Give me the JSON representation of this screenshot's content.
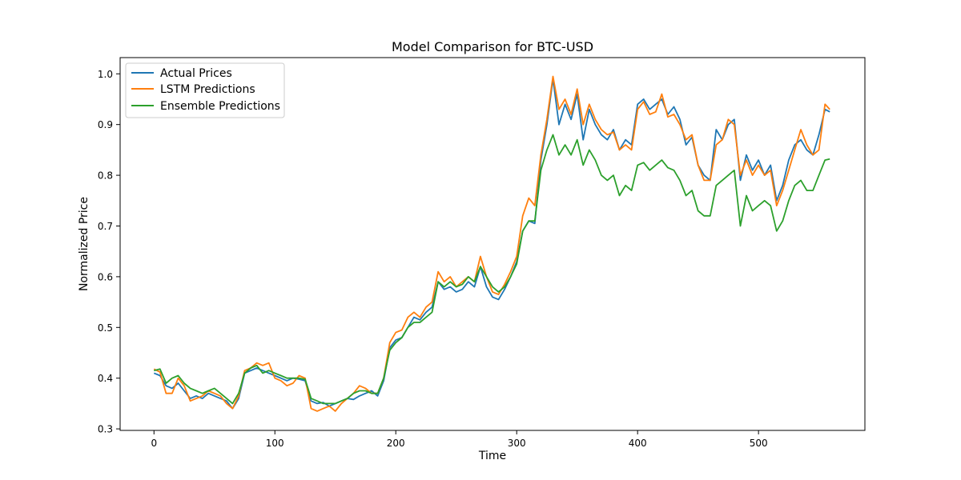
{
  "chart_data": {
    "type": "line",
    "title": "Model Comparison for BTC-USD",
    "xlabel": "Time",
    "ylabel": "Normalized Price",
    "xlim": [
      -28,
      588
    ],
    "ylim": [
      0.297,
      1.032
    ],
    "xticks": [
      0,
      100,
      200,
      300,
      400,
      500
    ],
    "yticks": [
      0.3,
      0.4,
      0.5,
      0.6,
      0.7,
      0.8,
      0.9,
      1.0
    ],
    "ytick_labels": [
      "0.3",
      "0.4",
      "0.5",
      "0.6",
      "0.7",
      "0.8",
      "0.9",
      "1.0"
    ],
    "grid": false,
    "legend_position": "top-left",
    "series": [
      {
        "name": "Actual Prices",
        "color": "#1f77b4",
        "x": [
          0,
          5,
          10,
          15,
          20,
          25,
          30,
          35,
          40,
          45,
          50,
          55,
          60,
          65,
          70,
          75,
          80,
          85,
          90,
          95,
          100,
          105,
          110,
          115,
          120,
          125,
          130,
          135,
          140,
          145,
          150,
          155,
          160,
          165,
          170,
          175,
          180,
          185,
          190,
          195,
          200,
          205,
          210,
          215,
          220,
          225,
          230,
          235,
          240,
          245,
          250,
          255,
          260,
          265,
          270,
          275,
          280,
          285,
          290,
          295,
          300,
          305,
          310,
          315,
          320,
          325,
          330,
          335,
          340,
          345,
          350,
          355,
          360,
          365,
          370,
          375,
          380,
          385,
          390,
          395,
          400,
          405,
          410,
          415,
          420,
          425,
          430,
          435,
          440,
          445,
          450,
          455,
          460,
          465,
          470,
          475,
          480,
          485,
          490,
          495,
          500,
          505,
          510,
          515,
          520,
          525,
          530,
          535,
          540,
          545,
          550,
          555,
          559
        ],
        "values": [
          0.41,
          0.405,
          0.385,
          0.38,
          0.39,
          0.375,
          0.36,
          0.365,
          0.36,
          0.37,
          0.365,
          0.36,
          0.355,
          0.34,
          0.36,
          0.41,
          0.415,
          0.42,
          0.415,
          0.41,
          0.405,
          0.4,
          0.395,
          0.4,
          0.398,
          0.395,
          0.355,
          0.35,
          0.352,
          0.345,
          0.35,
          0.355,
          0.36,
          0.358,
          0.365,
          0.37,
          0.375,
          0.365,
          0.395,
          0.46,
          0.475,
          0.48,
          0.5,
          0.52,
          0.515,
          0.53,
          0.54,
          0.59,
          0.575,
          0.58,
          0.57,
          0.575,
          0.59,
          0.58,
          0.62,
          0.58,
          0.56,
          0.555,
          0.575,
          0.6,
          0.63,
          0.69,
          0.71,
          0.705,
          0.83,
          0.9,
          0.99,
          0.9,
          0.94,
          0.91,
          0.96,
          0.87,
          0.93,
          0.9,
          0.88,
          0.87,
          0.89,
          0.85,
          0.87,
          0.86,
          0.94,
          0.95,
          0.93,
          0.94,
          0.95,
          0.92,
          0.935,
          0.91,
          0.86,
          0.875,
          0.82,
          0.8,
          0.79,
          0.89,
          0.87,
          0.9,
          0.91,
          0.79,
          0.84,
          0.81,
          0.83,
          0.8,
          0.82,
          0.75,
          0.78,
          0.83,
          0.86,
          0.87,
          0.85,
          0.84,
          0.88,
          0.93,
          0.925
        ]
      },
      {
        "name": "LSTM Predictions",
        "color": "#ff7f0e",
        "x": [
          0,
          5,
          10,
          15,
          20,
          25,
          30,
          35,
          40,
          45,
          50,
          55,
          60,
          65,
          70,
          75,
          80,
          85,
          90,
          95,
          100,
          105,
          110,
          115,
          120,
          125,
          130,
          135,
          140,
          145,
          150,
          155,
          160,
          165,
          170,
          175,
          180,
          185,
          190,
          195,
          200,
          205,
          210,
          215,
          220,
          225,
          230,
          235,
          240,
          245,
          250,
          255,
          260,
          265,
          270,
          275,
          280,
          285,
          290,
          295,
          300,
          305,
          310,
          315,
          320,
          325,
          330,
          335,
          340,
          345,
          350,
          355,
          360,
          365,
          370,
          375,
          380,
          385,
          390,
          395,
          400,
          405,
          410,
          415,
          420,
          425,
          430,
          435,
          440,
          445,
          450,
          455,
          460,
          465,
          470,
          475,
          480,
          485,
          490,
          495,
          500,
          505,
          510,
          515,
          520,
          525,
          530,
          535,
          540,
          545,
          550,
          555,
          559
        ],
        "values": [
          0.418,
          0.412,
          0.37,
          0.37,
          0.4,
          0.385,
          0.355,
          0.36,
          0.365,
          0.375,
          0.37,
          0.365,
          0.35,
          0.34,
          0.365,
          0.415,
          0.42,
          0.43,
          0.425,
          0.43,
          0.4,
          0.395,
          0.385,
          0.39,
          0.405,
          0.4,
          0.34,
          0.335,
          0.34,
          0.345,
          0.335,
          0.35,
          0.36,
          0.37,
          0.385,
          0.38,
          0.37,
          0.37,
          0.4,
          0.47,
          0.49,
          0.495,
          0.52,
          0.53,
          0.52,
          0.54,
          0.55,
          0.61,
          0.59,
          0.6,
          0.58,
          0.59,
          0.6,
          0.59,
          0.64,
          0.6,
          0.57,
          0.565,
          0.585,
          0.61,
          0.64,
          0.72,
          0.755,
          0.74,
          0.84,
          0.91,
          0.995,
          0.93,
          0.95,
          0.92,
          0.97,
          0.9,
          0.94,
          0.91,
          0.89,
          0.88,
          0.885,
          0.85,
          0.86,
          0.85,
          0.93,
          0.945,
          0.92,
          0.925,
          0.96,
          0.915,
          0.92,
          0.9,
          0.87,
          0.88,
          0.82,
          0.79,
          0.79,
          0.86,
          0.87,
          0.91,
          0.9,
          0.8,
          0.83,
          0.8,
          0.82,
          0.8,
          0.81,
          0.74,
          0.77,
          0.81,
          0.85,
          0.89,
          0.86,
          0.84,
          0.85,
          0.94,
          0.93
        ]
      },
      {
        "name": "Ensemble Predictions",
        "color": "#2ca02c",
        "x": [
          0,
          5,
          10,
          15,
          20,
          25,
          30,
          35,
          40,
          45,
          50,
          55,
          60,
          65,
          70,
          75,
          80,
          85,
          90,
          95,
          100,
          105,
          110,
          115,
          120,
          125,
          130,
          135,
          140,
          145,
          150,
          155,
          160,
          165,
          170,
          175,
          180,
          185,
          190,
          195,
          200,
          205,
          210,
          215,
          220,
          225,
          230,
          235,
          240,
          245,
          250,
          255,
          260,
          265,
          270,
          275,
          280,
          285,
          290,
          295,
          300,
          305,
          310,
          315,
          320,
          325,
          330,
          335,
          340,
          345,
          350,
          355,
          360,
          365,
          370,
          375,
          380,
          385,
          390,
          395,
          400,
          405,
          410,
          415,
          420,
          425,
          430,
          435,
          440,
          445,
          450,
          455,
          460,
          465,
          470,
          475,
          480,
          485,
          490,
          495,
          500,
          505,
          510,
          515,
          520,
          525,
          530,
          535,
          540,
          545,
          550,
          555,
          559
        ],
        "values": [
          0.415,
          0.418,
          0.39,
          0.4,
          0.405,
          0.39,
          0.38,
          0.375,
          0.37,
          0.375,
          0.38,
          0.37,
          0.36,
          0.35,
          0.37,
          0.41,
          0.42,
          0.425,
          0.41,
          0.415,
          0.41,
          0.405,
          0.4,
          0.4,
          0.4,
          0.398,
          0.36,
          0.355,
          0.35,
          0.35,
          0.35,
          0.355,
          0.36,
          0.37,
          0.375,
          0.375,
          0.37,
          0.37,
          0.4,
          0.455,
          0.47,
          0.48,
          0.5,
          0.51,
          0.51,
          0.52,
          0.53,
          0.59,
          0.58,
          0.59,
          0.58,
          0.585,
          0.6,
          0.59,
          0.62,
          0.6,
          0.58,
          0.57,
          0.58,
          0.6,
          0.625,
          0.69,
          0.71,
          0.71,
          0.81,
          0.85,
          0.88,
          0.84,
          0.86,
          0.84,
          0.87,
          0.82,
          0.85,
          0.83,
          0.8,
          0.79,
          0.8,
          0.76,
          0.78,
          0.77,
          0.82,
          0.825,
          0.81,
          0.82,
          0.83,
          0.815,
          0.81,
          0.79,
          0.76,
          0.77,
          0.73,
          0.72,
          0.72,
          0.78,
          0.79,
          0.8,
          0.81,
          0.7,
          0.76,
          0.73,
          0.74,
          0.75,
          0.74,
          0.69,
          0.71,
          0.75,
          0.78,
          0.79,
          0.77,
          0.77,
          0.8,
          0.83,
          0.832
        ]
      }
    ]
  }
}
